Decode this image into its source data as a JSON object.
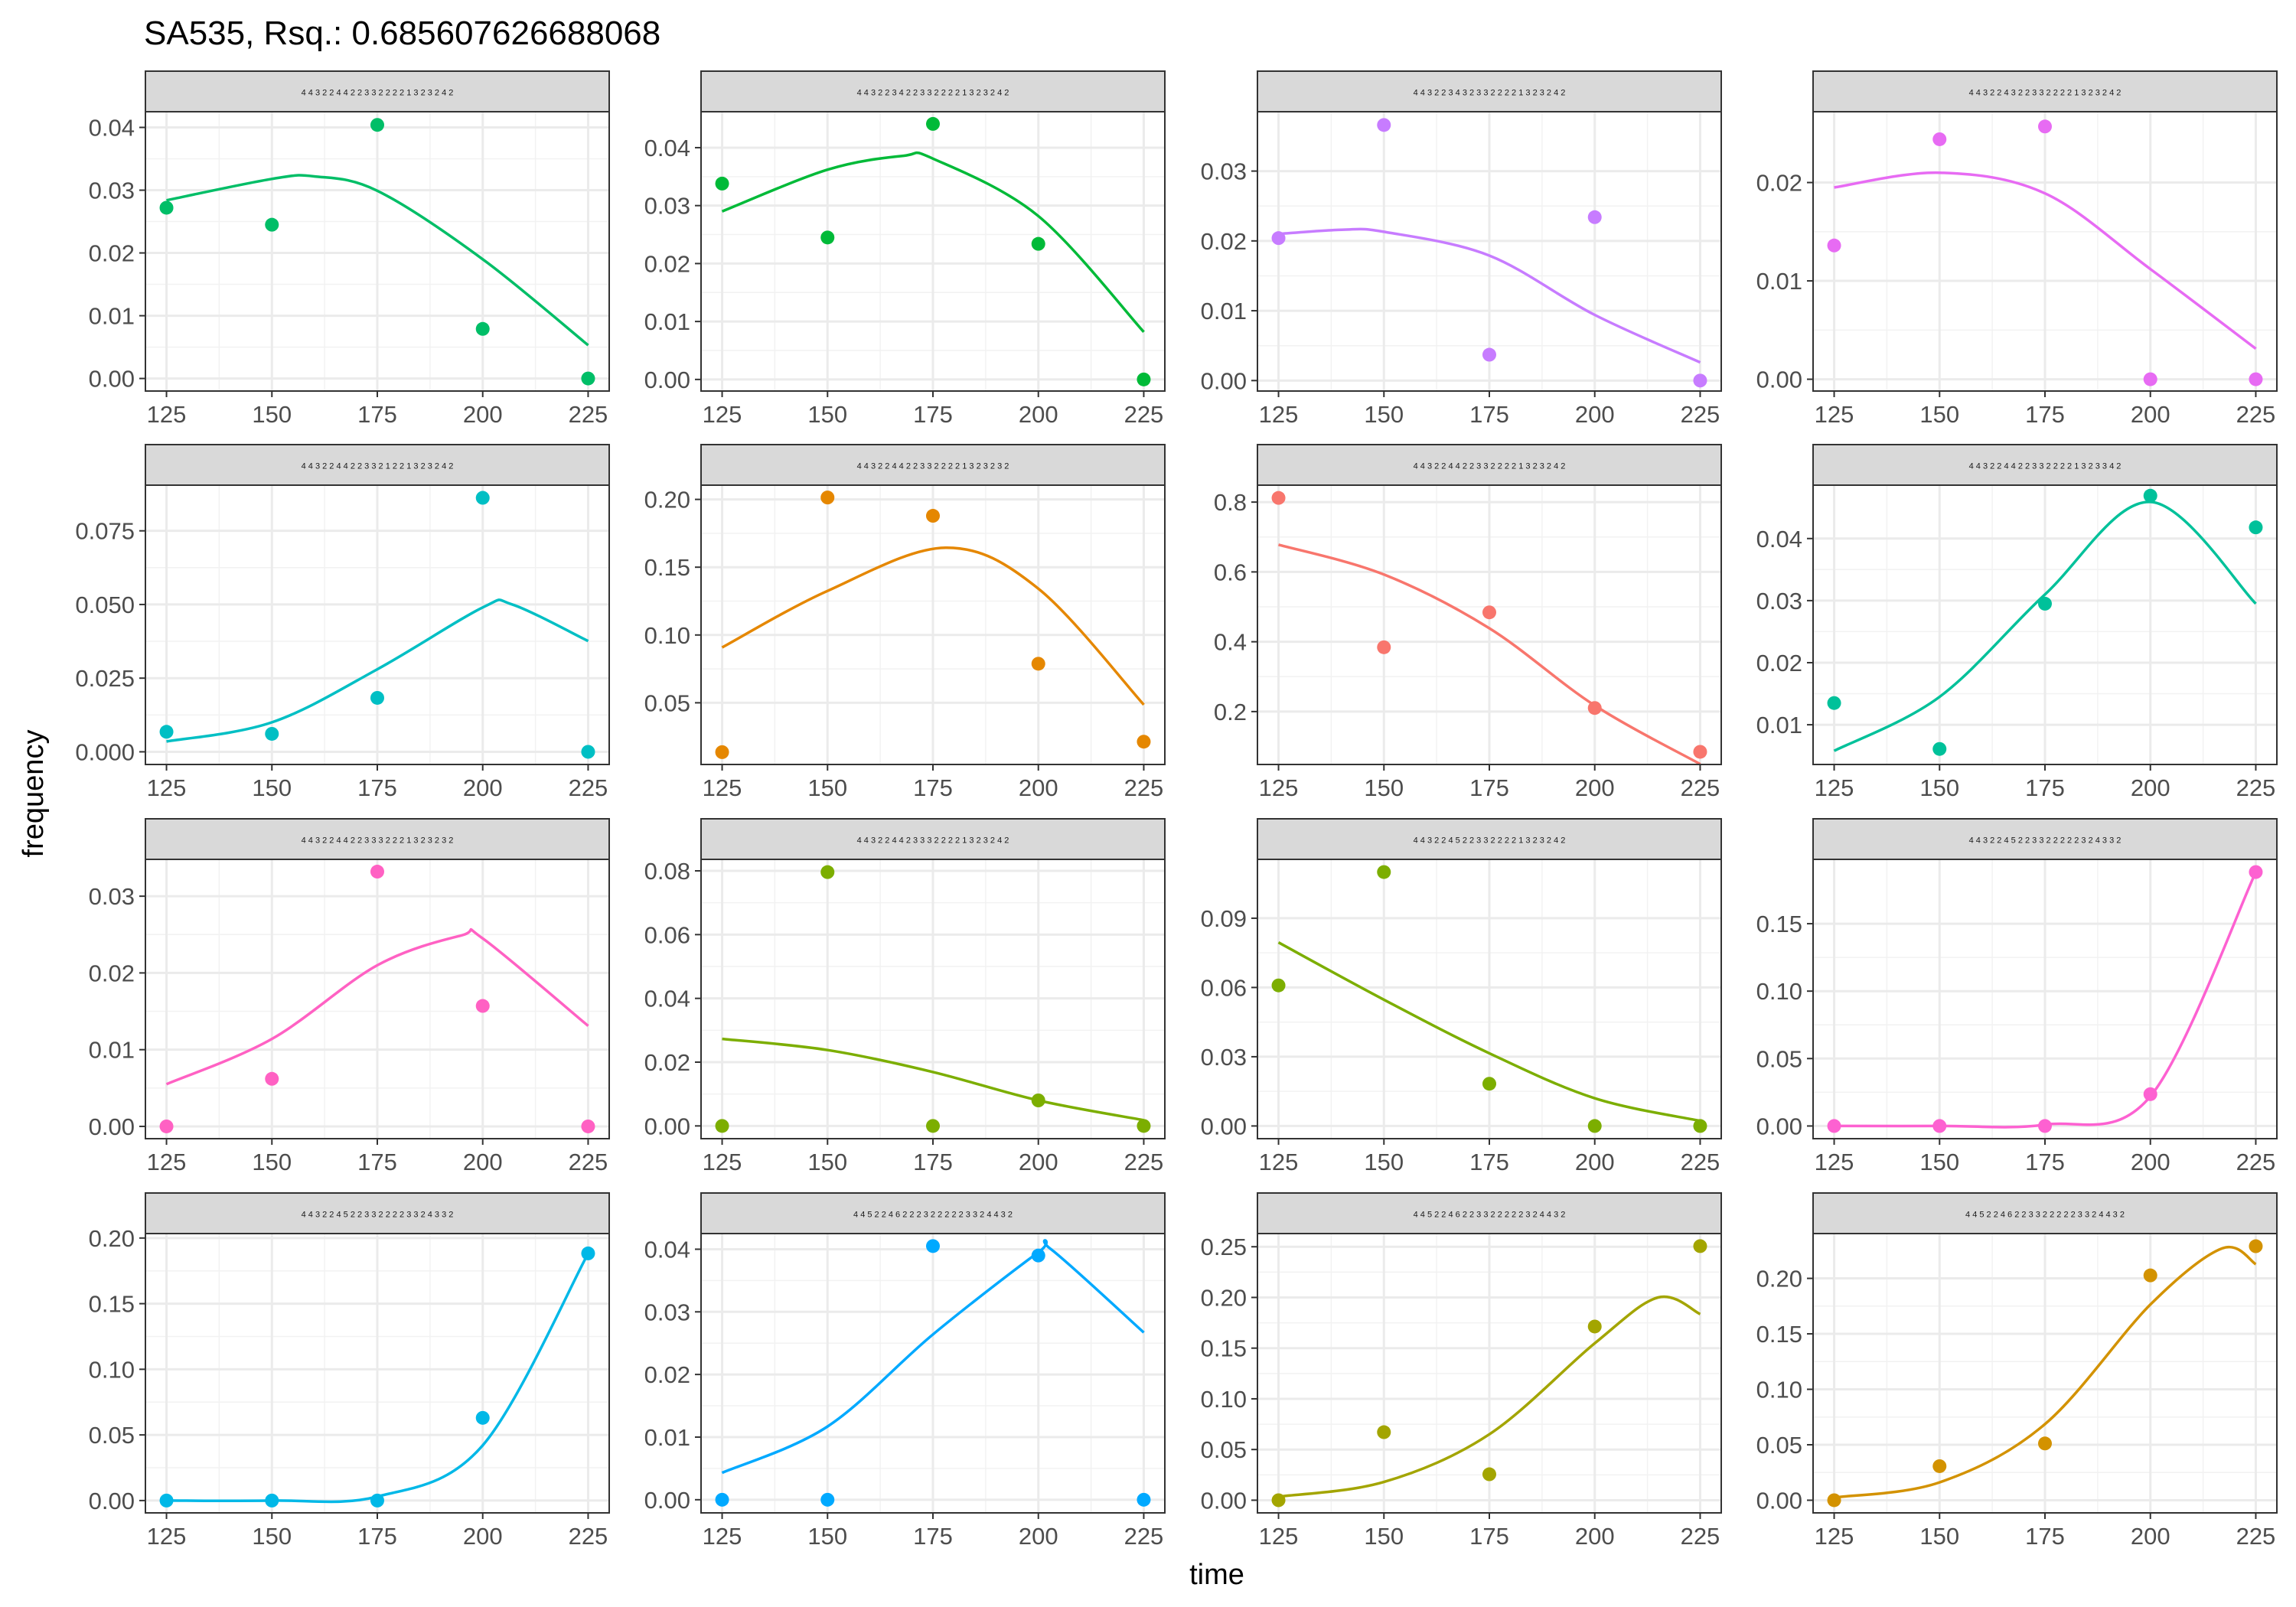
{
  "title": "SA535, Rsq.: 0.685607626688068",
  "xlabel": "time",
  "ylabel": "frequency",
  "chart_data": {
    "type": "scatter",
    "title": "SA535, Rsq.: 0.685607626688068",
    "xlabel": "time",
    "ylabel": "frequency",
    "grid": true,
    "legend": "none",
    "x_ticks": [
      125,
      150,
      175,
      200,
      225
    ],
    "panels": [
      {
        "strip": "4 4 3 2 2 4 4 2 2 3 3 2 2 2 2 1 3 2 3 2 4 2",
        "color": "#00BE67",
        "points": [
          [
            125,
            0.0272
          ],
          [
            150,
            0.0245
          ],
          [
            175,
            0.0404
          ],
          [
            200,
            0.0079
          ],
          [
            225,
            0.0
          ]
        ],
        "fit": [
          [
            125,
            0.0284
          ],
          [
            150,
            0.0318
          ],
          [
            160,
            0.0322
          ],
          [
            175,
            0.0299
          ],
          [
            200,
            0.019
          ],
          [
            225,
            0.0053
          ]
        ],
        "ylim": [
          -0.002,
          0.0425
        ],
        "yticks": [
          0.0,
          0.01,
          0.02,
          0.03,
          0.04
        ],
        "yticklabels": [
          "0.00",
          "0.01",
          "0.02",
          "0.03",
          "0.04"
        ]
      },
      {
        "strip": "4 4 3 2 2 3 4 2 2 3 3 2 2 2 2 1 3 2 3 2 4 2",
        "color": "#00BA38",
        "points": [
          [
            125,
            0.0338
          ],
          [
            150,
            0.0245
          ],
          [
            175,
            0.0441
          ],
          [
            200,
            0.0234
          ],
          [
            225,
            0.0
          ]
        ],
        "fit": [
          [
            125,
            0.029
          ],
          [
            150,
            0.0362
          ],
          [
            168,
            0.0386
          ],
          [
            175,
            0.0381
          ],
          [
            200,
            0.0282
          ],
          [
            225,
            0.0082
          ]
        ],
        "ylim": [
          -0.002,
          0.0462
        ],
        "yticks": [
          0.0,
          0.01,
          0.02,
          0.03,
          0.04
        ],
        "yticklabels": [
          "0.00",
          "0.01",
          "0.02",
          "0.03",
          "0.04"
        ]
      },
      {
        "strip": "4 4 3 2 2 3 4 3 2 3 3 2 2 2 2 1 3 2 3 2 4 2",
        "color": "#C77CFF",
        "points": [
          [
            125,
            0.0204
          ],
          [
            150,
            0.0366
          ],
          [
            175,
            0.0037
          ],
          [
            200,
            0.0234
          ],
          [
            225,
            0.0
          ]
        ],
        "fit": [
          [
            125,
            0.021
          ],
          [
            140,
            0.0216
          ],
          [
            150,
            0.0213
          ],
          [
            175,
            0.0179
          ],
          [
            200,
            0.0094
          ],
          [
            225,
            0.0026
          ]
        ],
        "ylim": [
          -0.0015,
          0.0385
        ],
        "yticks": [
          0.0,
          0.01,
          0.02,
          0.03
        ],
        "yticklabels": [
          "0.00",
          "0.01",
          "0.02",
          "0.03"
        ]
      },
      {
        "strip": "4 4 3 2 2 4 3 2 2 3 3 2 2 2 2 1 3 2 3 2 4 2",
        "color": "#E76BF3",
        "points": [
          [
            125,
            0.0136
          ],
          [
            150,
            0.0244
          ],
          [
            175,
            0.0257
          ],
          [
            200,
            0.0
          ],
          [
            225,
            0.0
          ]
        ],
        "fit": [
          [
            125,
            0.0195
          ],
          [
            150,
            0.021
          ],
          [
            175,
            0.0189
          ],
          [
            200,
            0.0112
          ],
          [
            225,
            0.0031
          ]
        ],
        "ylim": [
          -0.0012,
          0.0272
        ],
        "yticks": [
          0.0,
          0.01,
          0.02
        ],
        "yticklabels": [
          "0.00",
          "0.01",
          "0.02"
        ]
      },
      {
        "strip": "4 4 3 2 2 4 4 2 2 3 3 2 1 2 2 1 3 2 3 2 4 2",
        "color": "#00BFC4",
        "points": [
          [
            125,
            0.0068
          ],
          [
            150,
            0.0061
          ],
          [
            175,
            0.0183
          ],
          [
            200,
            0.0862
          ],
          [
            225,
            0.0
          ]
        ],
        "fit": [
          [
            125,
            0.0035
          ],
          [
            150,
            0.01
          ],
          [
            175,
            0.028
          ],
          [
            200,
            0.049
          ],
          [
            207,
            0.05
          ],
          [
            225,
            0.0376
          ]
        ],
        "ylim": [
          -0.0043,
          0.0905
        ],
        "yticks": [
          0.0,
          0.025,
          0.05,
          0.075
        ],
        "yticklabels": [
          "0.000",
          "0.025",
          "0.050",
          "0.075"
        ]
      },
      {
        "strip": "4 4 3 2 2 4 4 2 2 3 3 2 2 2 2 1 3 2 3 2 3 2",
        "color": "#E58700",
        "points": [
          [
            125,
            0.0136
          ],
          [
            150,
            0.2014
          ],
          [
            175,
            0.1879
          ],
          [
            200,
            0.0788
          ],
          [
            225,
            0.0213
          ]
        ],
        "fit": [
          [
            125,
            0.0908
          ],
          [
            150,
            0.1325
          ],
          [
            178,
            0.1644
          ],
          [
            200,
            0.1342
          ],
          [
            225,
            0.0486
          ]
        ],
        "ylim": [
          0.0045,
          0.2105
        ],
        "yticks": [
          0.05,
          0.1,
          0.15,
          0.2
        ],
        "yticklabels": [
          "0.05",
          "0.10",
          "0.15",
          "0.20"
        ]
      },
      {
        "strip": "4 4 3 2 2 4 4 2 2 3 3 2 2 2 2 1 3 2 3 2 4 2",
        "color": "#F8766D",
        "points": [
          [
            125,
            0.812
          ],
          [
            150,
            0.3842
          ],
          [
            175,
            0.4842
          ],
          [
            200,
            0.2102
          ],
          [
            225,
            0.0847
          ]
        ],
        "fit": [
          [
            125,
            0.678
          ],
          [
            150,
            0.5926
          ],
          [
            175,
            0.4386
          ],
          [
            200,
            0.2174
          ],
          [
            225,
            0.0496
          ]
        ],
        "ylim": [
          0.0485,
          0.8485
        ],
        "yticks": [
          0.2,
          0.4,
          0.6,
          0.8
        ],
        "yticklabels": [
          "0.2",
          "0.4",
          "0.6",
          "0.8"
        ]
      },
      {
        "strip": "4 4 3 2 2 4 4 2 2 3 3 2 2 2 2 1 3 2 3 3 4 2",
        "color": "#00C19A",
        "points": [
          [
            125,
            0.0135
          ],
          [
            150,
            0.0061
          ],
          [
            175,
            0.0295
          ],
          [
            200,
            0.0469
          ],
          [
            225,
            0.0418
          ]
        ],
        "fit": [
          [
            125,
            0.0058
          ],
          [
            150,
            0.0145
          ],
          [
            175,
            0.031
          ],
          [
            200,
            0.0459
          ],
          [
            225,
            0.0295
          ]
        ],
        "ylim": [
          0.0036,
          0.0486
        ],
        "yticks": [
          0.01,
          0.02,
          0.03,
          0.04
        ],
        "yticklabels": [
          "0.01",
          "0.02",
          "0.03",
          "0.04"
        ]
      },
      {
        "strip": "4 4 3 2 2 4 4 2 2 3 3 3 2 2 2 1 3 2 3 2 3 2",
        "color": "#FF61C3",
        "points": [
          [
            125,
            0.0
          ],
          [
            150,
            0.0062
          ],
          [
            175,
            0.0332
          ],
          [
            200,
            0.0157
          ],
          [
            225,
            0.0
          ]
        ],
        "fit": [
          [
            125,
            0.0055
          ],
          [
            150,
            0.0114
          ],
          [
            175,
            0.021
          ],
          [
            195,
            0.0249
          ],
          [
            200,
            0.0245
          ],
          [
            225,
            0.0131
          ]
        ],
        "ylim": [
          -0.0016,
          0.0348
        ],
        "yticks": [
          0.0,
          0.01,
          0.02,
          0.03
        ],
        "yticklabels": [
          "0.00",
          "0.01",
          "0.02",
          "0.03"
        ]
      },
      {
        "strip": "4 4 3 2 2 4 4 2 3 3 3 2 2 2 2 1 3 2 3 2 4 2",
        "color": "#7CAE00",
        "swap_color_with_next": false,
        "points": [
          [
            125,
            0.0
          ],
          [
            150,
            0.0796
          ],
          [
            175,
            0.0
          ],
          [
            200,
            0.008
          ],
          [
            225,
            0.0
          ]
        ],
        "fit": [
          [
            125,
            0.0273
          ],
          [
            150,
            0.0238
          ],
          [
            175,
            0.0169
          ],
          [
            200,
            0.008
          ],
          [
            225,
            0.0018
          ]
        ],
        "ylim": [
          -0.004,
          0.0836
        ],
        "yticks": [
          0.0,
          0.02,
          0.04,
          0.06,
          0.08
        ],
        "yticklabels": [
          "0.00",
          "0.02",
          "0.04",
          "0.06",
          "0.08"
        ]
      },
      {
        "strip": "4 4 3 2 2 4 5 2 2 3 3 2 2 2 2 1 3 2 3 2 4 2",
        "color": "#7CAE00",
        "points": [
          [
            125,
            0.0609
          ],
          [
            150,
            0.11
          ],
          [
            175,
            0.0183
          ],
          [
            200,
            0.0
          ],
          [
            225,
            0.0
          ]
        ],
        "fit": [
          [
            125,
            0.0795
          ],
          [
            150,
            0.0547
          ],
          [
            175,
            0.0315
          ],
          [
            200,
            0.012
          ],
          [
            225,
            0.0022
          ]
        ],
        "ylim": [
          -0.0055,
          0.1155
        ],
        "yticks": [
          0.0,
          0.03,
          0.06,
          0.09
        ],
        "yticklabels": [
          "0.00",
          "0.03",
          "0.06",
          "0.09"
        ]
      },
      {
        "strip": "4 4 3 2 2 4 5 2 2 3 3 2 2 2 2 2 3 2 4 3 3 2",
        "color": "#FD61D1",
        "points": [
          [
            125,
            0.0
          ],
          [
            150,
            0.0
          ],
          [
            175,
            0.0
          ],
          [
            200,
            0.0236
          ],
          [
            225,
            0.1883
          ]
        ],
        "fit": [
          [
            125,
            0.0
          ],
          [
            150,
            0.0
          ],
          [
            175,
            0.001
          ],
          [
            200,
            0.022
          ],
          [
            225,
            0.1883
          ]
        ],
        "ylim": [
          -0.0094,
          0.1977
        ],
        "yticks": [
          0.0,
          0.05,
          0.1,
          0.15
        ],
        "yticklabels": [
          "0.00",
          "0.05",
          "0.10",
          "0.15"
        ]
      },
      {
        "strip": "4 4 3 2 2 4 5 2 2 3 3 2 2 2 2 3 3 2 4 3 3 2",
        "color": "#00B8E7",
        "points": [
          [
            125,
            0.0
          ],
          [
            150,
            0.0
          ],
          [
            175,
            0.0
          ],
          [
            200,
            0.063
          ],
          [
            225,
            0.1883
          ]
        ],
        "fit": [
          [
            125,
            0.0
          ],
          [
            150,
            0.0
          ],
          [
            175,
            0.003
          ],
          [
            200,
            0.042
          ],
          [
            225,
            0.1883
          ]
        ],
        "ylim": [
          -0.0094,
          0.2034
        ],
        "yticks": [
          0.0,
          0.05,
          0.1,
          0.15,
          0.2
        ],
        "yticklabels": [
          "0.00",
          "0.05",
          "0.10",
          "0.15",
          "0.20"
        ]
      },
      {
        "strip": "4 4 5 2 2 4 6 2 2 2 3 2 2 2 2 2 3 3 2 4 4 3 2",
        "color": "#00A9FF",
        "points": [
          [
            125,
            0.0
          ],
          [
            150,
            0.0
          ],
          [
            175,
            0.0405
          ],
          [
            200,
            0.039
          ],
          [
            225,
            0.0
          ]
        ],
        "fit": [
          [
            125,
            0.0043
          ],
          [
            150,
            0.0117
          ],
          [
            175,
            0.0264
          ],
          [
            200,
            0.0395
          ],
          [
            203,
            0.04
          ],
          [
            225,
            0.0267
          ]
        ],
        "ylim": [
          -0.0021,
          0.0425
        ],
        "yticks": [
          0.0,
          0.01,
          0.02,
          0.03,
          0.04
        ],
        "yticklabels": [
          "0.00",
          "0.01",
          "0.02",
          "0.03",
          "0.04"
        ]
      },
      {
        "strip": "4 4 5 2 2 4 6 2 2 3 3 2 2 2 2 2 3 2 4 4 3 2",
        "color": "#A3A500",
        "points": [
          [
            125,
            0.0
          ],
          [
            150,
            0.0671
          ],
          [
            175,
            0.0256
          ],
          [
            200,
            0.1713
          ],
          [
            225,
            0.2506
          ]
        ],
        "fit": [
          [
            125,
            0.0035
          ],
          [
            150,
            0.018
          ],
          [
            175,
            0.065
          ],
          [
            200,
            0.1548
          ],
          [
            215,
            0.2
          ],
          [
            225,
            0.1836
          ]
        ],
        "ylim": [
          -0.0125,
          0.263
        ],
        "yticks": [
          0.0,
          0.05,
          0.1,
          0.15,
          0.2,
          0.25
        ],
        "yticklabels": [
          "0.00",
          "0.05",
          "0.10",
          "0.15",
          "0.20",
          "0.25"
        ]
      },
      {
        "strip": "4 4 5 2 2 4 6 2 2 3 3 2 2 2 2 2 3 3 2 4 4 3 2",
        "color": "#D39200",
        "points": [
          [
            125,
            0.0
          ],
          [
            150,
            0.0307
          ],
          [
            175,
            0.0512
          ],
          [
            200,
            0.2027
          ],
          [
            225,
            0.229
          ]
        ],
        "fit": [
          [
            125,
            0.0025
          ],
          [
            150,
            0.0161
          ],
          [
            175,
            0.0686
          ],
          [
            200,
            0.1764
          ],
          [
            217,
            0.227
          ],
          [
            225,
            0.2128
          ]
        ],
        "ylim": [
          -0.0114,
          0.2404
        ],
        "yticks": [
          0.0,
          0.05,
          0.1,
          0.15,
          0.2
        ],
        "yticklabels": [
          "0.00",
          "0.05",
          "0.10",
          "0.15",
          "0.20"
        ]
      }
    ]
  }
}
